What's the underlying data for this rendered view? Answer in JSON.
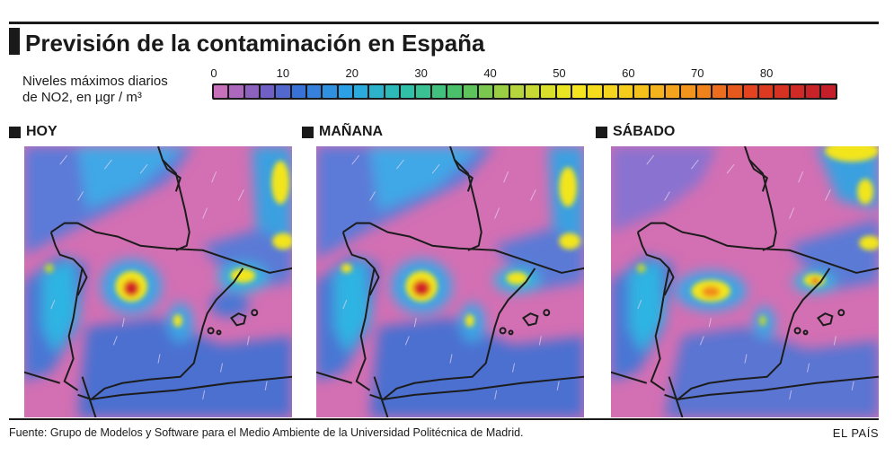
{
  "title": "Previsión de la contaminación en España",
  "legend": {
    "caption_line1": "Niveles máximos diarios",
    "caption_line2": "de NO2, en µgr / m³",
    "ticks": [
      "0",
      "10",
      "20",
      "30",
      "40",
      "50",
      "60",
      "70",
      "80"
    ],
    "tick_values": [
      0,
      10,
      20,
      30,
      40,
      50,
      60,
      70,
      80
    ],
    "scale_max": 90,
    "color_stops": [
      {
        "value": 0,
        "color": "#d774b8"
      },
      {
        "value": 7,
        "color": "#7b5cc0"
      },
      {
        "value": 12,
        "color": "#3a6fd6"
      },
      {
        "value": 20,
        "color": "#2aa6e8"
      },
      {
        "value": 28,
        "color": "#30c0a8"
      },
      {
        "value": 36,
        "color": "#4fc060"
      },
      {
        "value": 44,
        "color": "#b8d43a"
      },
      {
        "value": 52,
        "color": "#f4e81e"
      },
      {
        "value": 62,
        "color": "#f5c21c"
      },
      {
        "value": 70,
        "color": "#f28a1c"
      },
      {
        "value": 78,
        "color": "#e2401e"
      },
      {
        "value": 88,
        "color": "#c41e2a"
      }
    ]
  },
  "panels": [
    {
      "label": "HOY",
      "map_name": "map-hoy"
    },
    {
      "label": "MAÑANA",
      "map_name": "map-manana"
    },
    {
      "label": "SÁBADO",
      "map_name": "map-sabado"
    }
  ],
  "colors": {
    "background_pink": "#d36fb3",
    "low_blue": "#4a78d8",
    "mid_cyan": "#2bb6e6",
    "hotspot_yellow": "#f2e51e",
    "hotspot_red": "#c8162a",
    "border_line": "#1c1c1c"
  },
  "source": "Fuente: Grupo de Modelos y Software para el Medio Ambiente de la Universidad Politécnica de Madrid.",
  "brand": "EL PAÍS"
}
